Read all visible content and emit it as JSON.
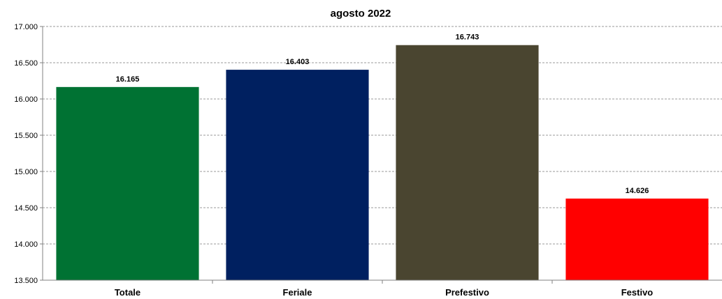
{
  "chart_data": {
    "type": "bar",
    "title": "agosto 2022",
    "categories": [
      "Totale",
      "Feriale",
      "Prefestivo",
      "Festivo"
    ],
    "values": [
      16165,
      16403,
      16743,
      14626
    ],
    "value_labels": [
      "16.165",
      "16.403",
      "16.743",
      "14.626"
    ],
    "colors": [
      "#007233",
      "#002060",
      "#4A4530",
      "#FF0000"
    ],
    "ylim": [
      13500,
      17000
    ],
    "yticks": [
      13500,
      14000,
      14500,
      15000,
      15500,
      16000,
      16500,
      17000
    ],
    "ytick_labels": [
      "13.500",
      "14.000",
      "14.500",
      "15.000",
      "15.500",
      "16.000",
      "16.500",
      "17.000"
    ],
    "xlabel": "",
    "ylabel": "",
    "grid": true,
    "legend": false
  }
}
